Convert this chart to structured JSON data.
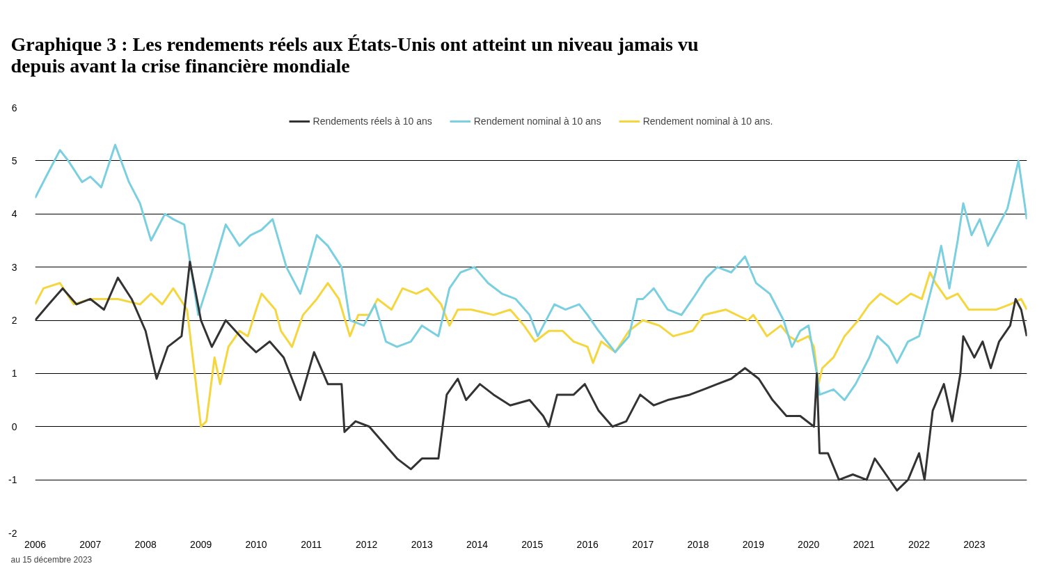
{
  "chart_data": {
    "type": "line",
    "title": "Graphique 3 : Les rendements réels aux États-Unis ont atteint un niveau jamais vu\ndepuis avant la crise financière mondiale",
    "annotations": [
      "au 15 décembre 2023"
    ],
    "xlim": [
      "2006-01-01",
      "2023-12-15"
    ],
    "xticks": [
      "2006",
      "2007",
      "2008",
      "2009",
      "2010",
      "2011",
      "2012",
      "2013",
      "2014",
      "2015",
      "2016",
      "2017",
      "2018",
      "2019",
      "2020",
      "2021",
      "2022",
      "2023"
    ],
    "ylim": [
      -2,
      6
    ],
    "yticks": [
      -2,
      -1,
      0,
      1,
      2,
      3,
      4,
      5,
      6
    ],
    "grid": "y",
    "legend": "top",
    "line_style": "solid",
    "marker": "none",
    "series": [
      {
        "name": "Rendements réels à 10 ans",
        "color": "#333333",
        "x": [
          "2006-01-01",
          "2006-04-01",
          "2006-07-02",
          "2006-10-01",
          "2007-01-01",
          "2007-04-01",
          "2007-07-02",
          "2007-10-01",
          "2008-01-01",
          "2008-03-14",
          "2008-05-27",
          "2008-08-26",
          "2008-10-20",
          "2009-01-01",
          "2009-03-14",
          "2009-06-14",
          "2009-10-20",
          "2010-01-01",
          "2010-04-01",
          "2010-07-02",
          "2010-10-20",
          "2011-01-19",
          "2011-04-20",
          "2011-07-20",
          "2011-08-08",
          "2011-10-20",
          "2012-01-19",
          "2012-04-20",
          "2012-07-20",
          "2012-10-20",
          "2013-01-01",
          "2013-04-20",
          "2013-06-14",
          "2013-08-26",
          "2013-10-20",
          "2014-01-19",
          "2014-04-20",
          "2014-08-08",
          "2014-12-14",
          "2015-03-14",
          "2015-04-20",
          "2015-06-14",
          "2015-10-01",
          "2015-12-14",
          "2016-03-14",
          "2016-06-14",
          "2016-09-13",
          "2016-12-14",
          "2017-03-14",
          "2017-06-14",
          "2017-11-07",
          "2018-02-06",
          "2018-05-08",
          "2018-08-08",
          "2018-11-07",
          "2019-02-06",
          "2019-05-08",
          "2019-08-08",
          "2019-11-07",
          "2020-02-06",
          "2020-02-25",
          "2020-03-14",
          "2020-05-08",
          "2020-07-20",
          "2020-10-20",
          "2021-01-19",
          "2021-03-14",
          "2021-05-27",
          "2021-08-08",
          "2021-10-20",
          "2022-01-01",
          "2022-02-06",
          "2022-04-01",
          "2022-06-14",
          "2022-08-08",
          "2022-10-01",
          "2022-10-20",
          "2023-01-01",
          "2023-02-25",
          "2023-04-20",
          "2023-06-14",
          "2023-08-26",
          "2023-10-01",
          "2023-11-07",
          "2023-12-14"
        ],
        "values": [
          2.0,
          2.3,
          2.6,
          2.3,
          2.4,
          2.2,
          2.8,
          2.4,
          1.8,
          0.9,
          1.5,
          1.7,
          3.1,
          2.0,
          1.5,
          2.0,
          1.6,
          1.4,
          1.6,
          1.3,
          0.5,
          1.4,
          0.8,
          0.8,
          -0.1,
          0.1,
          0.0,
          -0.3,
          -0.6,
          -0.8,
          -0.6,
          -0.6,
          0.6,
          0.9,
          0.5,
          0.8,
          0.6,
          0.4,
          0.5,
          0.2,
          0.0,
          0.6,
          0.6,
          0.8,
          0.3,
          0.0,
          0.1,
          0.6,
          0.4,
          0.5,
          0.6,
          0.7,
          0.8,
          0.9,
          1.1,
          0.9,
          0.5,
          0.2,
          0.2,
          0.0,
          1.0,
          -0.5,
          -0.5,
          -1.0,
          -0.9,
          -1.0,
          -0.6,
          -0.9,
          -1.2,
          -1.0,
          -0.5,
          -1.0,
          0.3,
          0.8,
          0.1,
          1.0,
          1.7,
          1.3,
          1.6,
          1.1,
          1.6,
          1.9,
          2.4,
          2.2,
          1.7
        ]
      },
      {
        "name": "Rendement nominal à 10 ans",
        "color": "#7acfe0",
        "x": [
          "2006-01-01",
          "2006-03-14",
          "2006-06-14",
          "2006-08-08",
          "2006-11-07",
          "2007-01-01",
          "2007-03-14",
          "2007-06-14",
          "2007-09-13",
          "2007-11-25",
          "2008-02-06",
          "2008-05-08",
          "2008-07-02",
          "2008-09-13",
          "2008-12-14",
          "2009-03-14",
          "2009-06-14",
          "2009-09-13",
          "2009-11-25",
          "2010-02-06",
          "2010-04-20",
          "2010-07-20",
          "2010-10-20",
          "2011-02-06",
          "2011-04-20",
          "2011-07-20",
          "2011-09-13",
          "2011-12-14",
          "2012-02-25",
          "2012-05-08",
          "2012-07-20",
          "2012-10-20",
          "2013-01-01",
          "2013-04-20",
          "2013-07-02",
          "2013-09-13",
          "2013-12-14",
          "2014-03-14",
          "2014-06-14",
          "2014-09-13",
          "2014-12-14",
          "2015-02-06",
          "2015-05-27",
          "2015-08-08",
          "2015-11-07",
          "2016-01-01",
          "2016-03-14",
          "2016-07-02",
          "2016-10-01",
          "2016-11-25",
          "2017-01-01",
          "2017-03-14",
          "2017-06-14",
          "2017-09-13",
          "2017-11-25",
          "2018-02-25",
          "2018-05-08",
          "2018-08-08",
          "2018-11-07",
          "2019-01-19",
          "2019-04-20",
          "2019-07-20",
          "2019-09-13",
          "2019-11-07",
          "2020-01-01",
          "2020-02-25",
          "2020-03-14",
          "2020-06-14",
          "2020-08-26",
          "2020-11-07",
          "2021-02-06",
          "2021-04-01",
          "2021-06-14",
          "2021-08-08",
          "2021-10-20",
          "2022-01-01",
          "2022-02-25",
          "2022-04-20",
          "2022-05-27",
          "2022-07-20",
          "2022-09-13",
          "2022-10-20",
          "2022-12-14",
          "2023-02-06",
          "2023-04-01",
          "2023-06-14",
          "2023-08-08",
          "2023-10-20",
          "2023-12-14"
        ],
        "values": [
          4.3,
          4.7,
          5.2,
          5.0,
          4.6,
          4.7,
          4.5,
          5.3,
          4.6,
          4.2,
          3.5,
          4.0,
          3.9,
          3.8,
          2.1,
          2.9,
          3.8,
          3.4,
          3.6,
          3.7,
          3.9,
          3.0,
          2.5,
          3.6,
          3.4,
          3.0,
          2.0,
          1.9,
          2.3,
          1.6,
          1.5,
          1.6,
          1.9,
          1.7,
          2.6,
          2.9,
          3.0,
          2.7,
          2.5,
          2.4,
          2.1,
          1.7,
          2.3,
          2.2,
          2.3,
          2.1,
          1.8,
          1.4,
          1.7,
          2.4,
          2.4,
          2.6,
          2.2,
          2.1,
          2.4,
          2.8,
          3.0,
          2.9,
          3.2,
          2.7,
          2.5,
          2.0,
          1.5,
          1.8,
          1.9,
          1.0,
          0.6,
          0.7,
          0.5,
          0.8,
          1.3,
          1.7,
          1.5,
          1.2,
          1.6,
          1.7,
          2.3,
          2.9,
          3.4,
          2.6,
          3.5,
          4.2,
          3.6,
          3.9,
          3.4,
          3.8,
          4.1,
          5.0,
          3.9
        ]
      },
      {
        "name": "Rendement nominal à 10 ans.",
        "color": "#f5d63d",
        "x": [
          "2006-01-01",
          "2006-02-25",
          "2006-06-14",
          "2006-09-13",
          "2007-01-01",
          "2007-07-02",
          "2007-11-25",
          "2008-02-06",
          "2008-04-20",
          "2008-07-02",
          "2008-10-01",
          "2008-11-25",
          "2009-01-01",
          "2009-02-06",
          "2009-04-01",
          "2009-05-08",
          "2009-07-02",
          "2009-09-13",
          "2009-11-07",
          "2010-01-01",
          "2010-02-06",
          "2010-05-08",
          "2010-06-14",
          "2010-08-26",
          "2010-11-07",
          "2011-02-06",
          "2011-04-20",
          "2011-07-02",
          "2011-09-13",
          "2011-11-07",
          "2012-01-19",
          "2012-03-14",
          "2012-06-14",
          "2012-08-26",
          "2012-11-25",
          "2013-02-06",
          "2013-05-08",
          "2013-07-02",
          "2013-08-26",
          "2013-11-25",
          "2014-04-20",
          "2014-08-08",
          "2014-11-07",
          "2015-01-19",
          "2015-04-20",
          "2015-07-20",
          "2015-10-01",
          "2016-01-01",
          "2016-02-06",
          "2016-04-01",
          "2016-07-02",
          "2016-10-01",
          "2017-01-01",
          "2017-04-20",
          "2017-07-20",
          "2017-11-25",
          "2018-02-06",
          "2018-07-02",
          "2018-11-25",
          "2019-01-01",
          "2019-04-01",
          "2019-07-02",
          "2019-08-26",
          "2019-10-20",
          "2020-01-01",
          "2020-02-06",
          "2020-03-07",
          "2020-04-01",
          "2020-06-14",
          "2020-08-26",
          "2020-11-25",
          "2021-02-06",
          "2021-04-20",
          "2021-08-08",
          "2021-11-07",
          "2022-01-19",
          "2022-03-14",
          "2022-04-20",
          "2022-07-02",
          "2022-09-13",
          "2022-11-25",
          "2023-02-06",
          "2023-05-27",
          "2023-08-26",
          "2023-11-07",
          "2023-12-14"
        ],
        "values": [
          2.3,
          2.6,
          2.7,
          2.3,
          2.4,
          2.4,
          2.3,
          2.5,
          2.3,
          2.6,
          2.2,
          0.9,
          0.0,
          0.1,
          1.3,
          0.8,
          1.5,
          1.8,
          1.7,
          2.2,
          2.5,
          2.2,
          1.8,
          1.5,
          2.1,
          2.4,
          2.7,
          2.4,
          1.7,
          2.1,
          2.1,
          2.4,
          2.2,
          2.6,
          2.5,
          2.6,
          2.3,
          1.9,
          2.2,
          2.2,
          2.1,
          2.2,
          1.9,
          1.6,
          1.8,
          1.8,
          1.6,
          1.5,
          1.2,
          1.6,
          1.4,
          1.8,
          2.0,
          1.9,
          1.7,
          1.8,
          2.1,
          2.2,
          2.0,
          2.1,
          1.7,
          1.9,
          1.7,
          1.6,
          1.7,
          1.5,
          0.8,
          1.1,
          1.3,
          1.7,
          2.0,
          2.3,
          2.5,
          2.3,
          2.5,
          2.4,
          2.9,
          2.7,
          2.4,
          2.5,
          2.2,
          2.2,
          2.2,
          2.3,
          2.4,
          2.2
        ]
      }
    ]
  }
}
